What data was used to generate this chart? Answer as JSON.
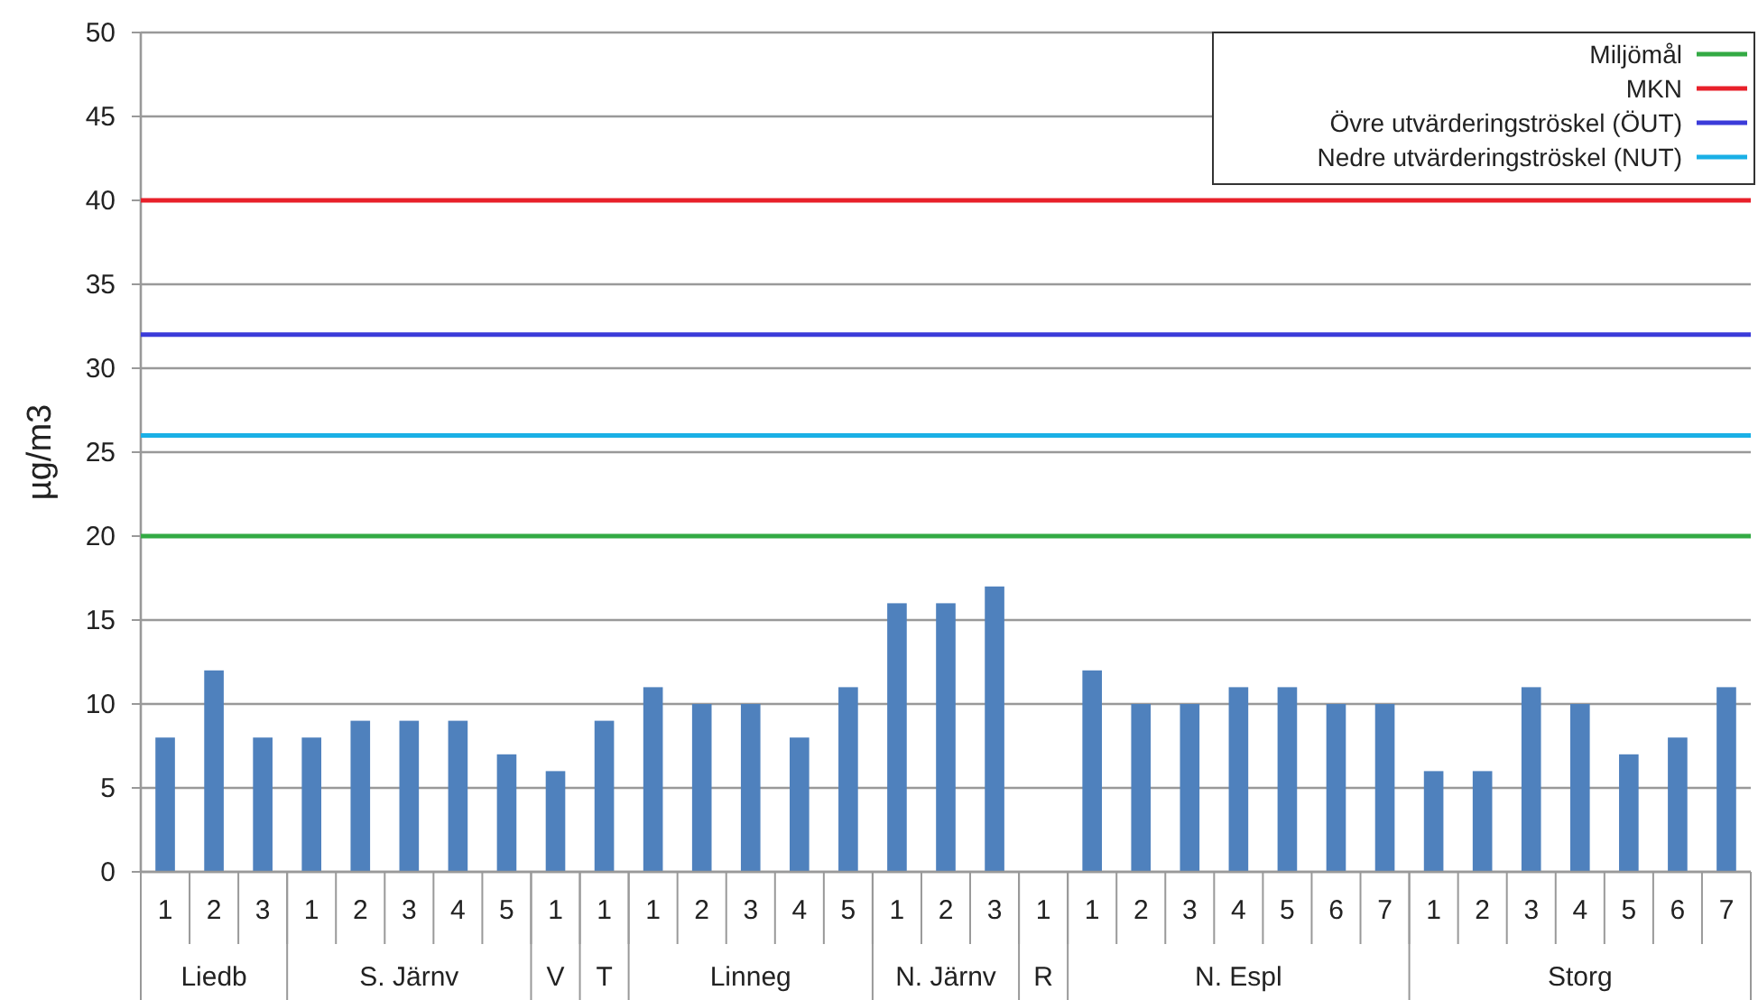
{
  "chart_data": {
    "type": "bar",
    "ylabel": "µg/m3",
    "categories": [
      "1",
      "2",
      "3",
      "1",
      "2",
      "3",
      "4",
      "5",
      "1",
      "1",
      "1",
      "2",
      "3",
      "4",
      "5",
      "1",
      "2",
      "3",
      "1",
      "1",
      "2",
      "3",
      "4",
      "5",
      "6",
      "7",
      "1",
      "2",
      "3",
      "4",
      "5",
      "6",
      "7"
    ],
    "values": [
      8,
      12,
      8,
      8,
      9,
      9,
      9,
      7,
      6,
      9,
      11,
      10,
      10,
      8,
      11,
      16,
      16,
      17,
      null,
      12,
      10,
      10,
      11,
      11,
      10,
      10,
      6,
      6,
      11,
      10,
      7,
      8,
      11
    ],
    "color": "#4f81bd",
    "annotations": [
      "Liedb",
      "S. Järnv",
      "V",
      "T",
      "Linneg",
      "N. Järnv",
      "R",
      "N. Espl",
      "Storg"
    ],
    "ylim": [
      0,
      50
    ],
    "yticks": [
      0,
      5,
      10,
      15,
      20,
      25,
      30,
      35,
      40,
      45,
      50
    ],
    "grid": "y",
    "legend": "top right",
    "ref_lines": [
      {
        "axis": "y",
        "value": 20,
        "label": "Miljömål",
        "color": "#33aa44"
      },
      {
        "axis": "y",
        "value": 40,
        "label": "MKN",
        "color": "#e8202a"
      },
      {
        "axis": "y",
        "value": 32,
        "label": "Övre utvärderingströskel (ÖUT)",
        "color": "#3b3bd9"
      },
      {
        "axis": "y",
        "value": 26,
        "label": "Nedre utvärderingströskel (NUT)",
        "color": "#1ab0e6"
      }
    ]
  }
}
